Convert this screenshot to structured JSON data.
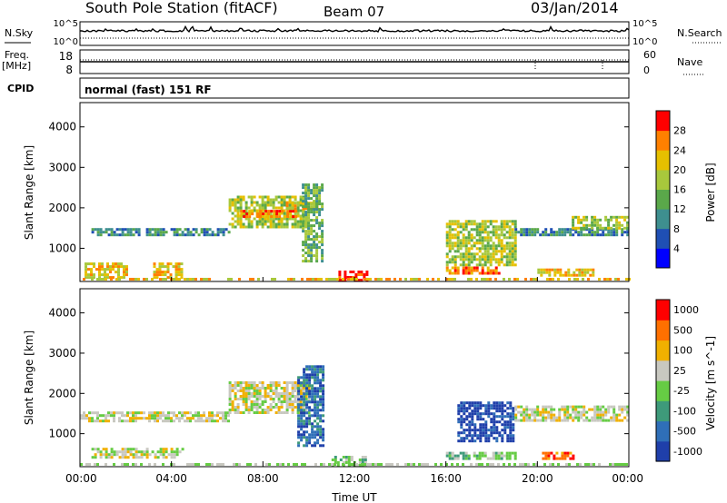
{
  "header": {
    "station": "South Pole Station (fitACF)",
    "beam": "Beam 07",
    "date": "03/Jan/2014"
  },
  "aux_panels": {
    "nsky_label": "N.Sky",
    "nsky_ticks": [
      "10^5",
      "10^0"
    ],
    "nsearch_label": "N.Search",
    "nsearch_ticks": [
      "10^5",
      "10^0"
    ],
    "freq_label": "Freq.",
    "freq_unit": "[MHz]",
    "freq_ticks": [
      "18",
      "8"
    ],
    "nave_label": "Nave",
    "nave_ticks": [
      "60",
      "0"
    ],
    "cpid_label": "CPID",
    "cpid_value": "normal (fast) 151 RF"
  },
  "chart_data": [
    {
      "type": "heatmap",
      "name": "power-panel",
      "ylabel": "Slant Range [km]",
      "yticks": [
        "4000",
        "3000",
        "2000",
        "1000"
      ],
      "ytick_values": [
        4000,
        3000,
        2000,
        1000
      ],
      "ylim": [
        180,
        4600
      ],
      "xlim_hours": [
        0,
        24
      ],
      "colorbar": {
        "label": "Power [dB]",
        "ticks": [
          "28",
          "24",
          "20",
          "16",
          "12",
          "8",
          "4"
        ],
        "colors": [
          "#0000ff",
          "#1f4fb4",
          "#3e8f8f",
          "#5aa84a",
          "#a8c83c",
          "#e6c000",
          "#ff8000",
          "#ff0000"
        ]
      },
      "echo_regions": [
        {
          "t": [
            0.5,
            6.5
          ],
          "r": [
            1350,
            1500
          ],
          "level": 2
        },
        {
          "t": [
            6.5,
            9.9
          ],
          "r": [
            1500,
            2300
          ],
          "level": 4
        },
        {
          "t": [
            7.0,
            9.5
          ],
          "r": [
            1750,
            1950
          ],
          "level": 6
        },
        {
          "t": [
            9.0,
            10.4
          ],
          "r": [
            1950,
            2150
          ],
          "level": 5
        },
        {
          "t": [
            9.7,
            10.6
          ],
          "r": [
            700,
            2600
          ],
          "level": 3
        },
        {
          "t": [
            0.2,
            2.0
          ],
          "r": [
            300,
            650
          ],
          "level": 5
        },
        {
          "t": [
            3.2,
            4.4
          ],
          "r": [
            300,
            650
          ],
          "level": 5
        },
        {
          "t": [
            11.3,
            12.5
          ],
          "r": [
            200,
            450
          ],
          "level": 7
        },
        {
          "t": [
            16.0,
            19.0
          ],
          "r": [
            600,
            1700
          ],
          "level": 4
        },
        {
          "t": [
            16.0,
            18.5
          ],
          "r": [
            350,
            550
          ],
          "level": 6
        },
        {
          "t": [
            19.0,
            24.0
          ],
          "r": [
            1350,
            1500
          ],
          "level": 2
        },
        {
          "t": [
            21.5,
            24.0
          ],
          "r": [
            1500,
            1800
          ],
          "level": 4
        },
        {
          "t": [
            20.0,
            22.5
          ],
          "r": [
            350,
            500
          ],
          "level": 5
        }
      ]
    },
    {
      "type": "heatmap",
      "name": "velocity-panel",
      "ylabel": "Slant Range [km]",
      "yticks": [
        "4000",
        "3000",
        "2000",
        "1000"
      ],
      "ytick_values": [
        4000,
        3000,
        2000,
        1000
      ],
      "ylim": [
        180,
        4600
      ],
      "xlim_hours": [
        0,
        24
      ],
      "xticks": [
        "00:00",
        "04:00",
        "08:00",
        "12:00",
        "16:00",
        "20:00",
        "00:00"
      ],
      "xtick_hours": [
        0,
        4,
        8,
        12,
        16,
        20,
        24
      ],
      "xlabel": "Time UT",
      "colorbar": {
        "label": "Velocity [m s^-1]",
        "ticks": [
          "1000",
          "500",
          "100",
          "25",
          "-25",
          "-100",
          "-500",
          "-1000"
        ],
        "colors": [
          "#1f3faa",
          "#2f6fb8",
          "#3e9a7a",
          "#66cc44",
          "#c8c8c0",
          "#f0b000",
          "#ff7000",
          "#ff0000"
        ]
      },
      "echo_regions": [
        {
          "t": [
            0.0,
            6.5
          ],
          "r": [
            1300,
            1550
          ],
          "level": 4
        },
        {
          "t": [
            6.5,
            10.0
          ],
          "r": [
            1500,
            2300
          ],
          "level": 4
        },
        {
          "t": [
            9.5,
            10.6
          ],
          "r": [
            700,
            2700
          ],
          "level": 1
        },
        {
          "t": [
            0.5,
            4.5
          ],
          "r": [
            400,
            650
          ],
          "level": 4
        },
        {
          "t": [
            11.0,
            12.5
          ],
          "r": [
            200,
            450
          ],
          "level": 3
        },
        {
          "t": [
            16.5,
            19.0
          ],
          "r": [
            800,
            1800
          ],
          "level": 0
        },
        {
          "t": [
            16.0,
            19.0
          ],
          "r": [
            350,
            550
          ],
          "level": 3
        },
        {
          "t": [
            19.0,
            24.0
          ],
          "r": [
            1300,
            1700
          ],
          "level": 4
        },
        {
          "t": [
            20.2,
            21.6
          ],
          "r": [
            350,
            550
          ],
          "level": 6
        }
      ]
    }
  ]
}
